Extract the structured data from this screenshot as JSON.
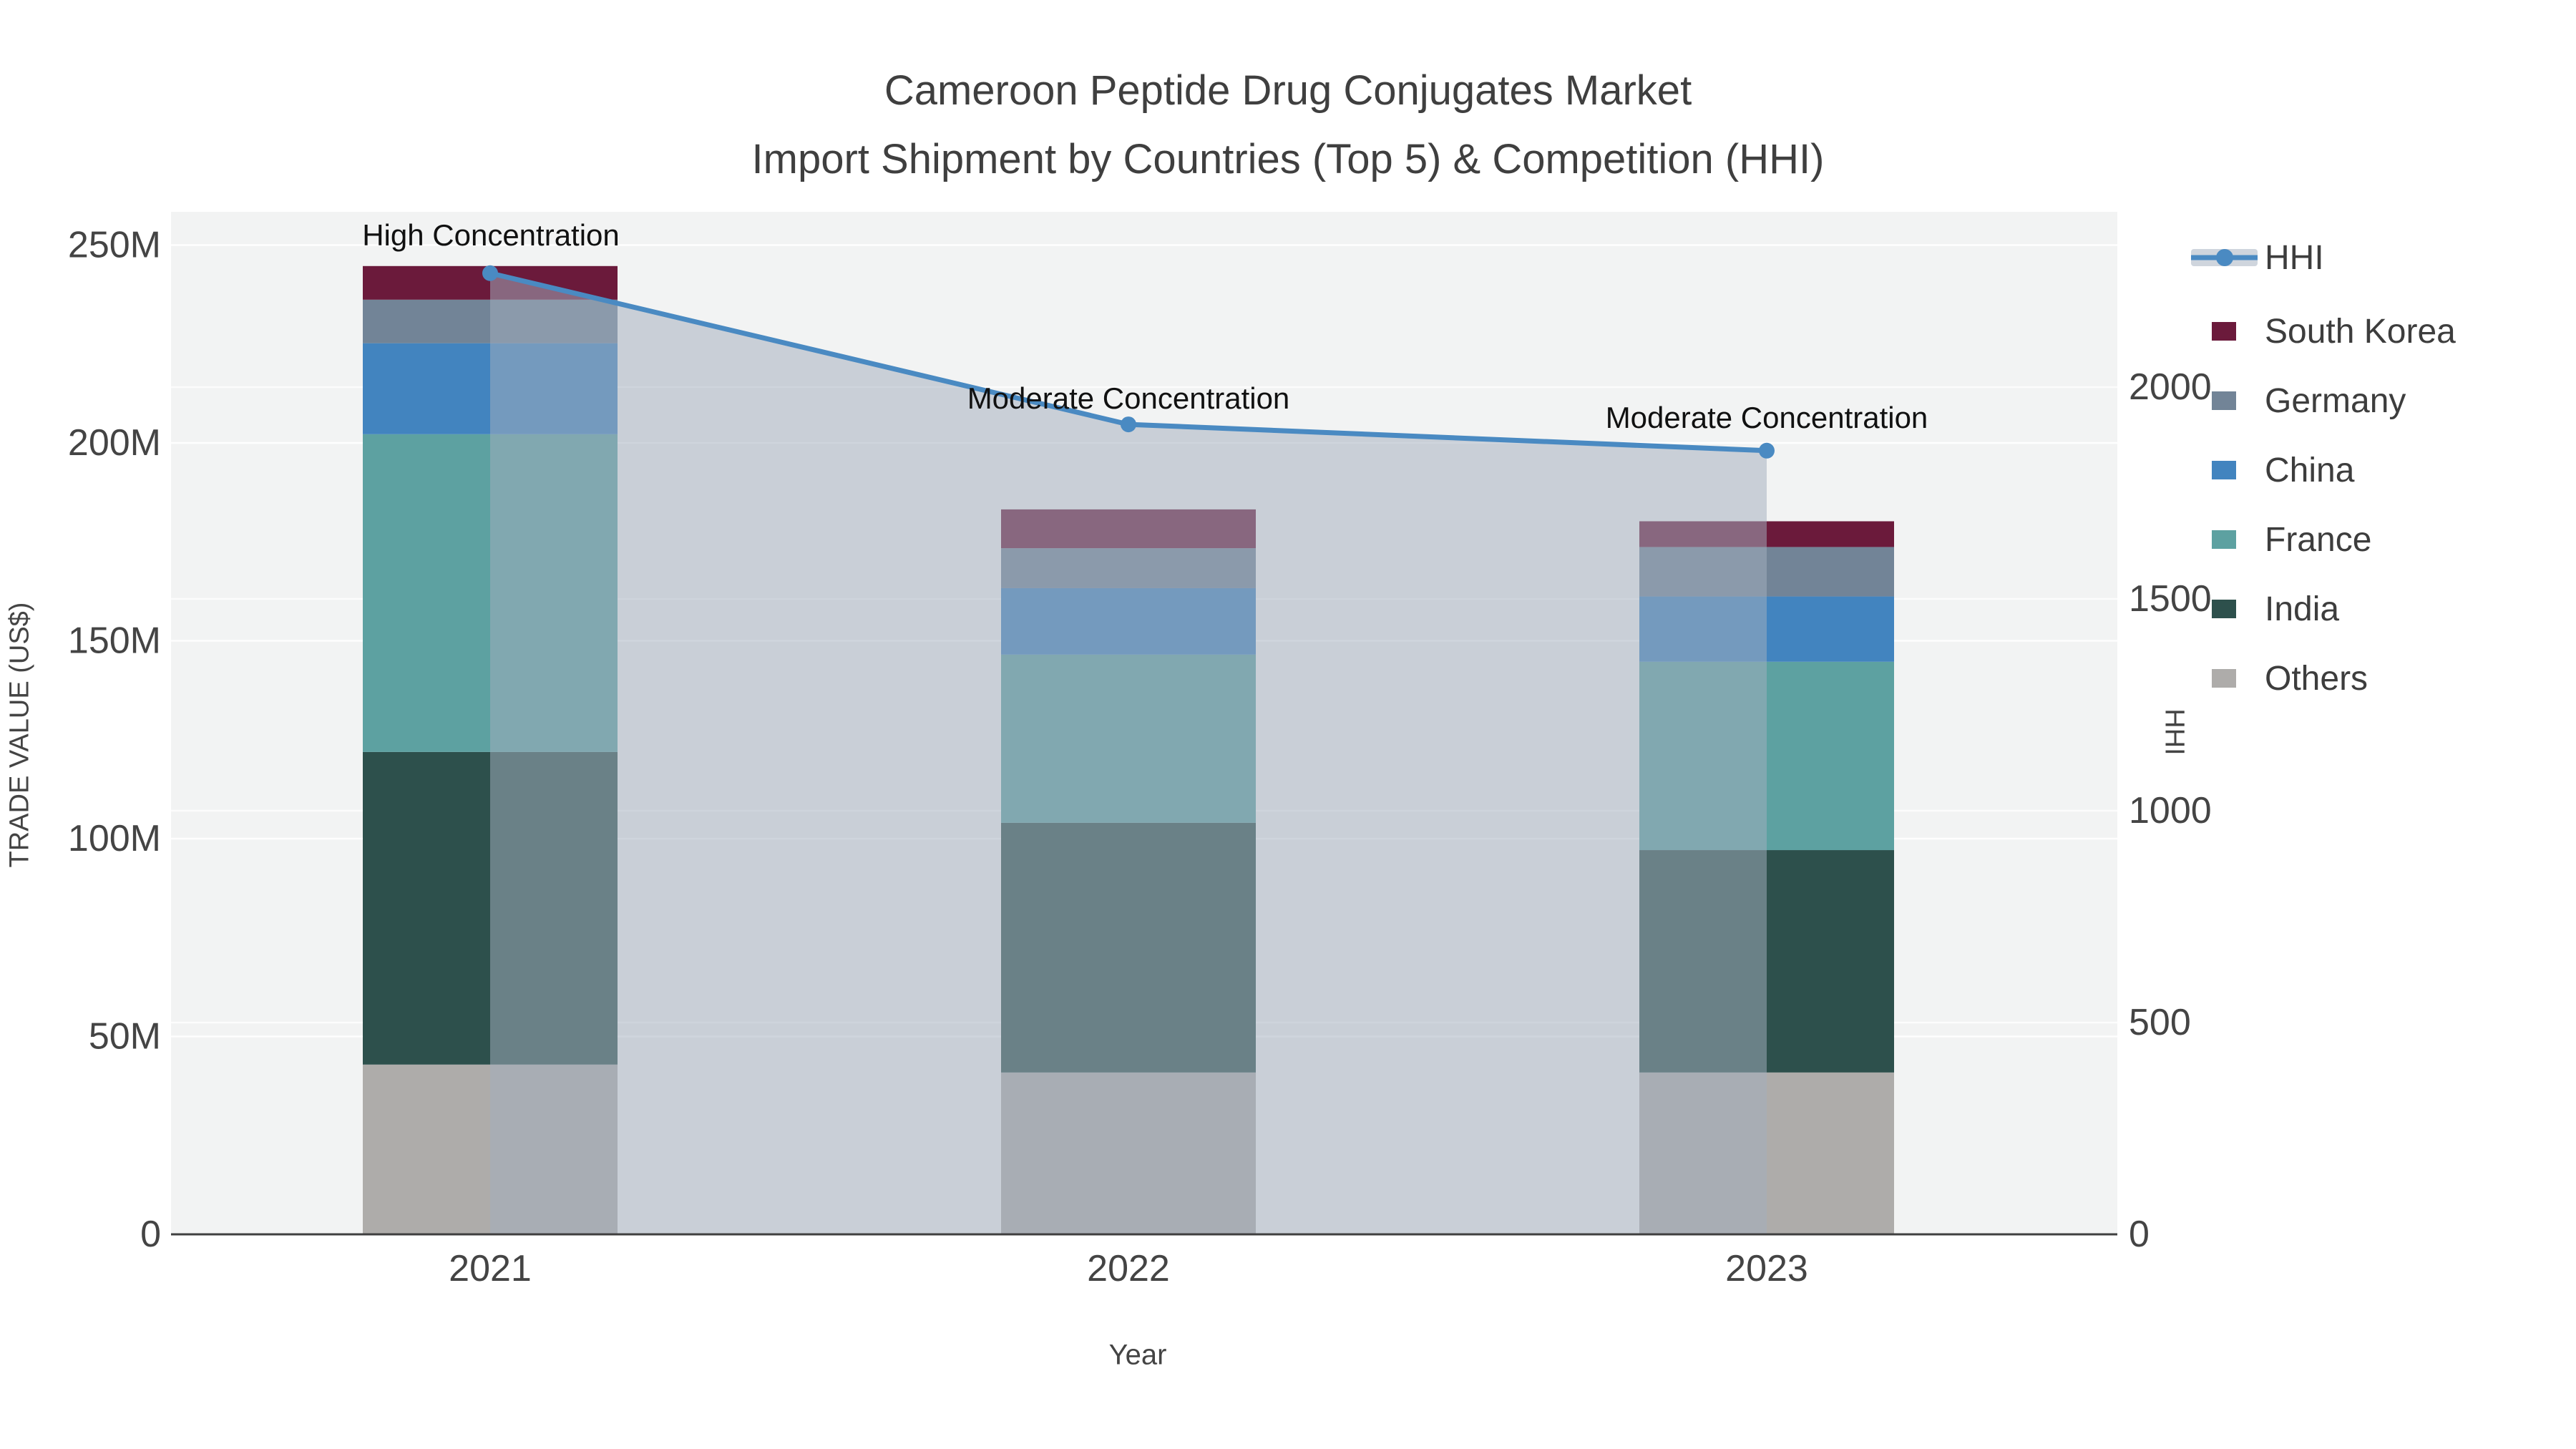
{
  "title": {
    "line1": "Cameroon Peptide Drug Conjugates Market",
    "line2": "Import Shipment by Countries (Top 5) & Competition (HHI)"
  },
  "axes": {
    "x": {
      "title": "Year",
      "categories": [
        "2021",
        "2022",
        "2023"
      ]
    },
    "y_left": {
      "title": "TRADE VALUE (US$)",
      "ticks": [
        "0",
        "50M",
        "100M",
        "150M",
        "200M",
        "250M"
      ]
    },
    "y_right": {
      "title": "HHI",
      "ticks": [
        "0",
        "500",
        "1000",
        "1500",
        "2000"
      ]
    }
  },
  "legend": {
    "items": [
      {
        "label": "HHI",
        "type": "line",
        "color": "#4a8ac2"
      },
      {
        "label": "South Korea",
        "type": "bar",
        "color": "#6b1a3b"
      },
      {
        "label": "Germany",
        "type": "bar",
        "color": "#728497"
      },
      {
        "label": "China",
        "type": "bar",
        "color": "#4284bf"
      },
      {
        "label": "France",
        "type": "bar",
        "color": "#5da1a1"
      },
      {
        "label": "India",
        "type": "bar",
        "color": "#2d504c"
      },
      {
        "label": "Others",
        "type": "bar",
        "color": "#aeacaa"
      }
    ]
  },
  "annotations": [
    {
      "text": "High Concentration",
      "category": "2021"
    },
    {
      "text": "Moderate Concentration",
      "category": "2022"
    },
    {
      "text": "Moderate Concentration",
      "category": "2023"
    }
  ],
  "chart_data": {
    "type": "bar+line",
    "title": "Cameroon Peptide Drug Conjugates Market Import Shipment by Countries (Top 5) & Competition (HHI)",
    "xlabel": "Year",
    "ylabel_left": "TRADE VALUE (US$)",
    "ylabel_right": "HHI",
    "categories": [
      "2021",
      "2022",
      "2023"
    ],
    "stack_order_bottom_to_top": [
      "Others",
      "India",
      "France",
      "China",
      "Germany",
      "South Korea"
    ],
    "series": [
      {
        "name": "South Korea",
        "type": "bar",
        "color": "#6b1a3b",
        "values_musd": [
          8.5,
          9.8,
          6.5
        ]
      },
      {
        "name": "Germany",
        "type": "bar",
        "color": "#728497",
        "values_musd": [
          11.0,
          10.1,
          12.5
        ]
      },
      {
        "name": "China",
        "type": "bar",
        "color": "#4284bf",
        "values_musd": [
          23.0,
          16.8,
          16.5
        ]
      },
      {
        "name": "France",
        "type": "bar",
        "color": "#5da1a1",
        "values_musd": [
          80.3,
          42.5,
          47.6
        ]
      },
      {
        "name": "India",
        "type": "bar",
        "color": "#2d504c",
        "values_musd": [
          79.0,
          63.1,
          56.2
        ]
      },
      {
        "name": "Others",
        "type": "bar",
        "color": "#aeacaa",
        "values_musd": [
          42.9,
          40.9,
          40.9
        ]
      }
    ],
    "totals_musd": [
      244.7,
      183.2,
      180.2
    ],
    "line": {
      "name": "HHI",
      "color": "#4a8ac2",
      "area_color": "#a3aebe",
      "area_alpha": 0.52,
      "values": [
        2269,
        1912,
        1850
      ]
    },
    "ylim_left_musd": [
      0,
      250
    ],
    "ylim_right": [
      0,
      2000
    ],
    "grid": true,
    "legend_position": "right",
    "plot_bg": "#f2f3f3",
    "grid_color": "#ffffff",
    "axisline_color": "#3f3f3f",
    "tick_color": "#444444"
  }
}
